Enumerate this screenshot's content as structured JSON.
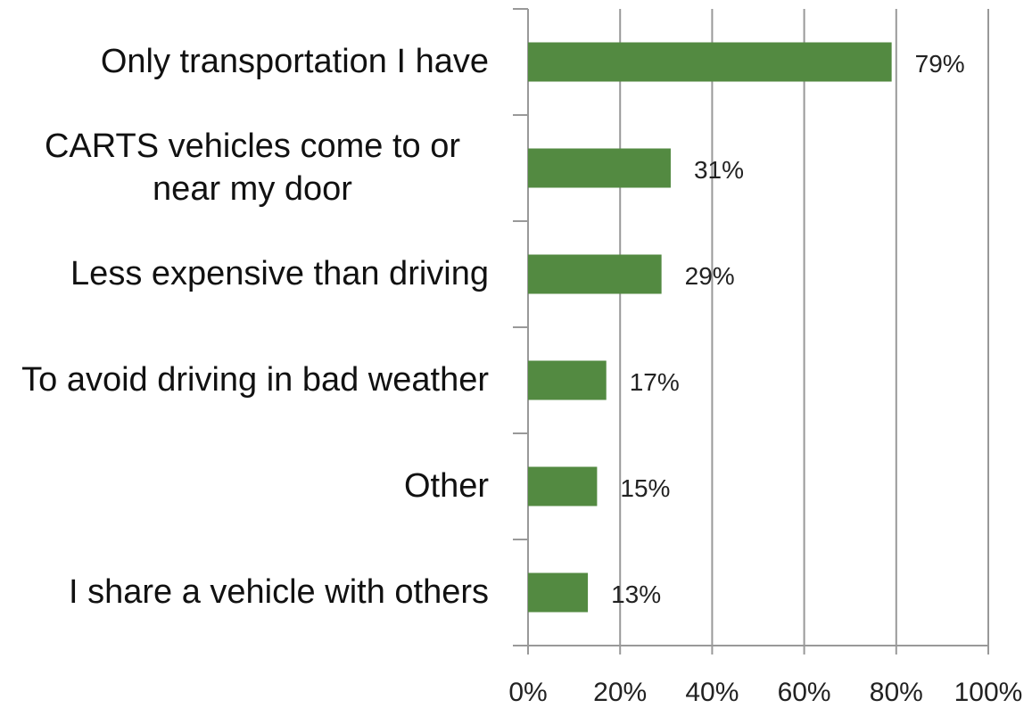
{
  "chart_data": {
    "type": "bar",
    "orientation": "horizontal",
    "categories": [
      "Only transportation I have",
      "CARTS vehicles come to or near my door",
      "Less expensive than driving",
      "To avoid driving in bad weather",
      "Other",
      "I share a vehicle with others"
    ],
    "values": [
      79,
      31,
      29,
      17,
      15,
      13
    ],
    "value_labels": [
      "79%",
      "31%",
      "29%",
      "17%",
      "15%",
      "13%"
    ],
    "color": "#538a41",
    "xlim": [
      0,
      100
    ],
    "xticks": [
      {
        "value": 0,
        "label": "0%"
      },
      {
        "value": 20,
        "label": "20%"
      },
      {
        "value": 40,
        "label": "40%"
      },
      {
        "value": 60,
        "label": "60%"
      },
      {
        "value": 80,
        "label": "80%"
      },
      {
        "value": 100,
        "label": "100%"
      }
    ],
    "grid": true
  }
}
